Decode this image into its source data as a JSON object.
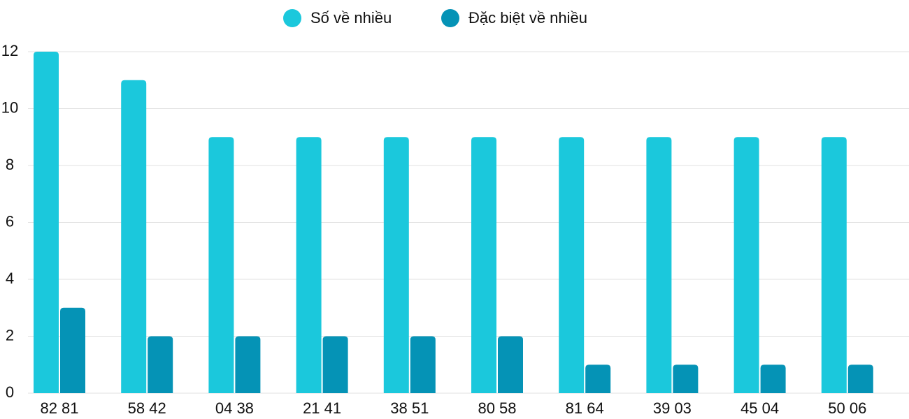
{
  "chart_data": {
    "type": "bar",
    "categories": [
      "82 81",
      "58 42",
      "04 38",
      "21 41",
      "38 51",
      "80 58",
      "81 64",
      "39 03",
      "45 04",
      "50 06"
    ],
    "series": [
      {
        "name": "Số về nhiều",
        "color": "#1bc8dc",
        "values": [
          12,
          11,
          9,
          9,
          9,
          9,
          9,
          9,
          9,
          9
        ]
      },
      {
        "name": "Đặc biệt về nhiều",
        "color": "#0593b6",
        "values": [
          3,
          2,
          2,
          2,
          2,
          2,
          1,
          1,
          1,
          1
        ]
      }
    ],
    "ylim": [
      0,
      12
    ],
    "yticks": [
      0,
      2,
      4,
      6,
      8,
      10,
      12
    ],
    "grid": true,
    "legend": "top"
  }
}
